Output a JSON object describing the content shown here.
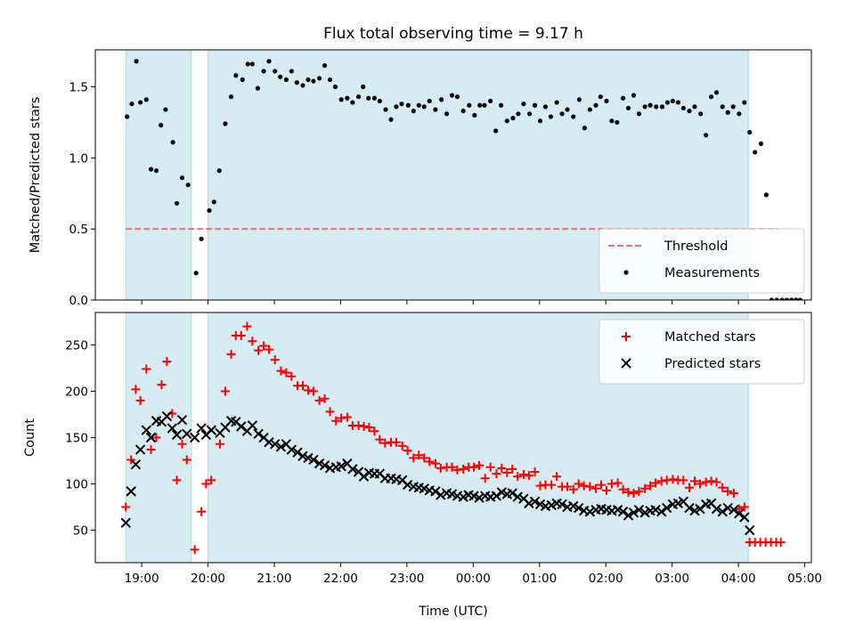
{
  "title": "Flux total observing time = 9.17 h",
  "chart_data": [
    {
      "type": "scatter",
      "ylabel": "Matched/Predicted stars",
      "xlim": [
        18.3,
        29.1
      ],
      "ylim": [
        0,
        1.76
      ],
      "yticks": [
        "0.0",
        "0.5",
        "1.0",
        "1.5"
      ],
      "shaded_regions": [
        [
          18.76,
          19.75
        ],
        [
          20.0,
          28.15
        ]
      ],
      "threshold": {
        "name": "Threshold",
        "value": 0.5,
        "x_range": [
          18.76,
          28.6
        ],
        "color": "#f07070"
      },
      "legend": {
        "position": "lower-right",
        "entries": [
          "Threshold",
          "Measurements"
        ]
      },
      "series": [
        {
          "name": "Measurements",
          "color": "#000000",
          "marker": "dot",
          "x": [
            18.78,
            18.85,
            18.92,
            18.98,
            19.07,
            19.14,
            19.22,
            19.29,
            19.36,
            19.47,
            19.53,
            19.61,
            19.7,
            19.82,
            19.9,
            20.02,
            20.09,
            20.17,
            20.26,
            20.35,
            20.42,
            20.52,
            20.6,
            20.67,
            20.75,
            20.84,
            20.92,
            21.01,
            21.09,
            21.18,
            21.26,
            21.34,
            21.43,
            21.51,
            21.59,
            21.68,
            21.76,
            21.84,
            21.92,
            22.01,
            22.1,
            22.18,
            22.27,
            22.34,
            22.42,
            22.51,
            22.59,
            22.68,
            22.76,
            22.84,
            22.92,
            23.02,
            23.1,
            23.18,
            23.26,
            23.34,
            23.43,
            23.52,
            23.6,
            23.68,
            23.76,
            23.85,
            23.94,
            24.02,
            24.1,
            24.17,
            24.26,
            24.34,
            24.42,
            24.51,
            24.6,
            24.68,
            24.76,
            24.85,
            24.93,
            25.01,
            25.09,
            25.17,
            25.26,
            25.34,
            25.42,
            25.51,
            25.6,
            25.68,
            25.76,
            25.85,
            25.92,
            26.01,
            26.09,
            26.17,
            26.26,
            26.34,
            26.42,
            26.5,
            26.59,
            26.67,
            26.76,
            26.85,
            26.93,
            27.01,
            27.09,
            27.17,
            27.26,
            27.34,
            27.43,
            27.51,
            27.59,
            27.67,
            27.76,
            27.84,
            27.92,
            28.01,
            28.09,
            28.17,
            28.25,
            28.34,
            28.42,
            28.5,
            28.58
          ],
          "y": [
            1.29,
            1.38,
            1.68,
            1.39,
            1.41,
            0.92,
            0.91,
            1.23,
            1.34,
            1.11,
            0.68,
            0.86,
            0.81,
            0.19,
            0.43,
            0.63,
            0.69,
            0.91,
            1.24,
            1.43,
            1.58,
            1.55,
            1.66,
            1.66,
            1.49,
            1.61,
            1.68,
            1.61,
            1.57,
            1.55,
            1.61,
            1.53,
            1.51,
            1.55,
            1.54,
            1.56,
            1.65,
            1.55,
            1.5,
            1.41,
            1.42,
            1.39,
            1.43,
            1.5,
            1.42,
            1.42,
            1.4,
            1.34,
            1.27,
            1.36,
            1.38,
            1.37,
            1.33,
            1.37,
            1.36,
            1.4,
            1.34,
            1.41,
            1.31,
            1.44,
            1.43,
            1.33,
            1.37,
            1.3,
            1.37,
            1.37,
            1.4,
            1.19,
            1.37,
            1.26,
            1.28,
            1.31,
            1.38,
            1.31,
            1.37,
            1.26,
            1.36,
            1.29,
            1.39,
            1.31,
            1.34,
            1.29,
            1.41,
            1.21,
            1.34,
            1.37,
            1.43,
            1.4,
            1.26,
            1.25,
            1.42,
            1.35,
            1.44,
            1.31,
            1.36,
            1.37,
            1.36,
            1.36,
            1.39,
            1.4,
            1.39,
            1.35,
            1.33,
            1.36,
            1.31,
            1.16,
            1.43,
            1.46,
            1.36,
            1.32,
            1.36,
            1.31,
            1.39,
            1.18,
            1.04,
            1.1,
            0.74,
            0.0,
            0.0
          ],
          "x_extra": [
            28.66,
            28.73,
            28.8,
            28.87,
            28.93
          ],
          "y_extra": [
            0.0,
            0.0,
            0.0,
            0.0,
            0.0
          ]
        }
      ]
    },
    {
      "type": "scatter",
      "xlabel": "Time (UTC)",
      "ylabel": "Count",
      "xlim": [
        18.3,
        29.1
      ],
      "ylim": [
        15,
        285
      ],
      "yticks": [
        "50",
        "100",
        "150",
        "200",
        "250"
      ],
      "xticks": [
        "19:00",
        "20:00",
        "21:00",
        "22:00",
        "23:00",
        "00:00",
        "01:00",
        "02:00",
        "03:00",
        "04:00",
        "05:00"
      ],
      "shaded_regions": [
        [
          18.76,
          19.75
        ],
        [
          20.0,
          28.15
        ]
      ],
      "legend": {
        "position": "top-right",
        "entries": [
          "Matched stars",
          "Predicted stars"
        ]
      },
      "series": [
        {
          "name": "Matched stars",
          "color": "#ff0000",
          "marker": "plus",
          "x": [
            18.76,
            18.84,
            18.91,
            18.98,
            19.07,
            19.14,
            19.22,
            19.3,
            19.38,
            19.46,
            19.53,
            19.61,
            19.68,
            19.8,
            19.9,
            19.97,
            20.05,
            20.18,
            20.26,
            20.35,
            20.42,
            20.5,
            20.59,
            20.67,
            20.76,
            20.84,
            20.92,
            21.01,
            21.1,
            21.18,
            21.26,
            21.35,
            21.43,
            21.51,
            21.59,
            21.68,
            21.76,
            21.84,
            21.93,
            22.01,
            22.1,
            22.18,
            22.27,
            22.35,
            22.43,
            22.51,
            22.59,
            22.67,
            22.76,
            22.84,
            22.93,
            23.01,
            23.1,
            23.18,
            23.26,
            23.34,
            23.43,
            23.51,
            23.6,
            23.68,
            23.76,
            23.85,
            23.93,
            24.01,
            24.09,
            24.18,
            24.26,
            24.35,
            24.43,
            24.51,
            24.59,
            24.67,
            24.76,
            24.84,
            24.93,
            25.01,
            25.09,
            25.18,
            25.26,
            25.34,
            25.42,
            25.51,
            25.59,
            25.67,
            25.76,
            25.85,
            25.93,
            26.01,
            26.09,
            26.18,
            26.26,
            26.34,
            26.42,
            26.5,
            26.59,
            26.67,
            26.75,
            26.84,
            26.92,
            27.01,
            27.09,
            27.17,
            27.26,
            27.34,
            27.42,
            27.51,
            27.59,
            27.67,
            27.76,
            27.84,
            27.93,
            28.01,
            28.09,
            28.17,
            28.25,
            28.33,
            28.41,
            28.49,
            28.57,
            28.64
          ],
          "y": [
            75,
            126,
            202,
            190,
            224,
            137,
            150,
            207,
            232,
            176,
            104,
            143,
            126,
            29,
            70,
            100,
            104,
            143,
            200,
            240,
            260,
            260,
            270,
            254,
            244,
            249,
            245,
            234,
            222,
            220,
            216,
            206,
            206,
            201,
            200,
            190,
            192,
            178,
            168,
            171,
            172,
            163,
            163,
            162,
            161,
            157,
            148,
            144,
            145,
            145,
            141,
            136,
            128,
            131,
            128,
            124,
            122,
            117,
            118,
            118,
            115,
            116,
            118,
            118,
            120,
            106,
            118,
            111,
            117,
            112,
            116,
            108,
            110,
            109,
            113,
            98,
            99,
            99,
            108,
            97,
            97,
            94,
            100,
            98,
            97,
            95,
            99,
            93,
            100,
            101,
            94,
            91,
            90,
            92,
            95,
            98,
            101,
            103,
            104,
            105,
            104,
            104,
            96,
            103,
            100,
            102,
            103,
            102,
            96,
            92,
            90,
            73,
            75,
            37,
            37,
            37,
            37,
            37,
            37,
            37
          ]
        },
        {
          "name": "Predicted stars",
          "color": "#000000",
          "marker": "x",
          "x": [
            18.76,
            18.84,
            18.91,
            18.98,
            19.07,
            19.14,
            19.22,
            19.3,
            19.38,
            19.46,
            19.53,
            19.61,
            19.68,
            19.8,
            19.9,
            19.97,
            20.05,
            20.18,
            20.26,
            20.35,
            20.42,
            20.5,
            20.59,
            20.67,
            20.76,
            20.84,
            20.92,
            21.01,
            21.1,
            21.18,
            21.26,
            21.35,
            21.43,
            21.51,
            21.59,
            21.68,
            21.76,
            21.84,
            21.93,
            22.01,
            22.1,
            22.18,
            22.27,
            22.35,
            22.43,
            22.51,
            22.59,
            22.67,
            22.76,
            22.84,
            22.93,
            23.01,
            23.1,
            23.18,
            23.26,
            23.34,
            23.43,
            23.51,
            23.6,
            23.68,
            23.76,
            23.85,
            23.93,
            24.01,
            24.09,
            24.18,
            24.26,
            24.35,
            24.43,
            24.51,
            24.59,
            24.67,
            24.76,
            24.84,
            24.93,
            25.01,
            25.09,
            25.18,
            25.26,
            25.34,
            25.42,
            25.51,
            25.59,
            25.67,
            25.76,
            25.85,
            25.93,
            26.01,
            26.09,
            26.18,
            26.26,
            26.34,
            26.42,
            26.5,
            26.59,
            26.67,
            26.75,
            26.84,
            26.92,
            27.01,
            27.09,
            27.17,
            27.26,
            27.34,
            27.42,
            27.51,
            27.59,
            27.67,
            27.76,
            27.84,
            27.93,
            28.01,
            28.09,
            28.17
          ],
          "y": [
            58,
            92,
            121,
            137,
            158,
            150,
            168,
            167,
            173,
            160,
            153,
            169,
            154,
            150,
            160,
            153,
            158,
            155,
            161,
            168,
            167,
            162,
            157,
            163,
            154,
            150,
            145,
            143,
            140,
            143,
            137,
            134,
            130,
            128,
            126,
            122,
            120,
            117,
            118,
            119,
            122,
            116,
            113,
            108,
            112,
            111,
            111,
            106,
            106,
            105,
            104,
            99,
            97,
            96,
            95,
            93,
            92,
            88,
            90,
            89,
            87,
            86,
            88,
            87,
            85,
            87,
            86,
            87,
            91,
            89,
            90,
            86,
            84,
            79,
            81,
            78,
            76,
            77,
            79,
            78,
            75,
            76,
            74,
            71,
            70,
            72,
            73,
            72,
            71,
            72,
            70,
            66,
            69,
            72,
            69,
            71,
            72,
            70,
            74,
            78,
            79,
            81,
            74,
            71,
            73,
            78,
            79,
            73,
            70,
            74,
            72,
            68,
            64,
            50
          ]
        }
      ]
    }
  ]
}
